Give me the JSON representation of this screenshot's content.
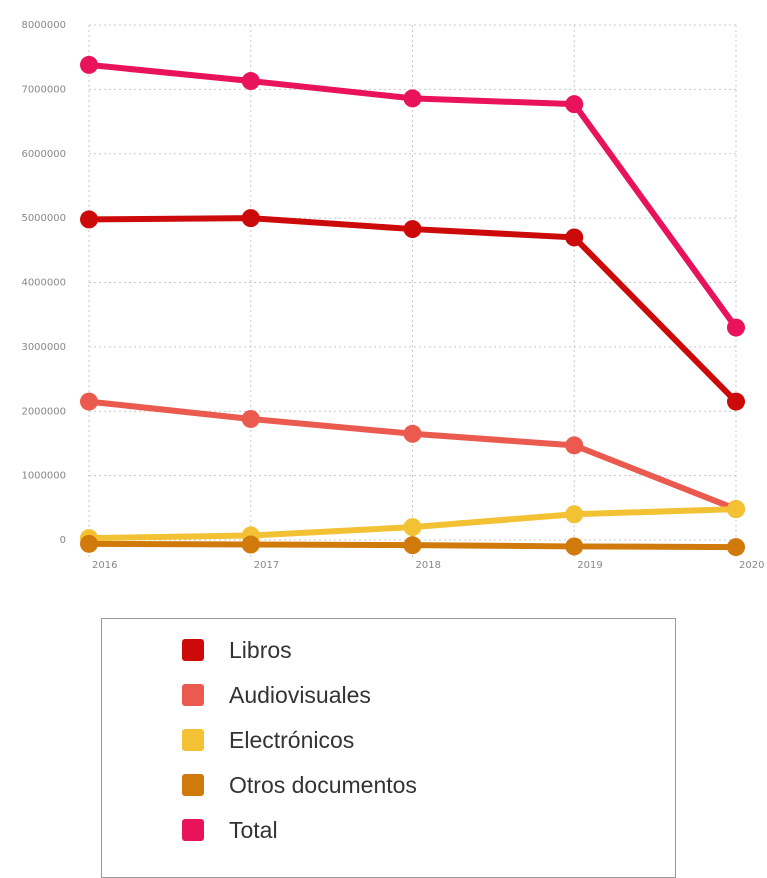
{
  "chart_data": {
    "type": "line",
    "x": [
      "2016",
      "2017",
      "2018",
      "2019",
      "2020"
    ],
    "ylim": [
      0,
      8000000
    ],
    "yticks": [
      0,
      1000000,
      2000000,
      3000000,
      4000000,
      5000000,
      6000000,
      7000000,
      8000000
    ],
    "ytick_labels": [
      "0",
      "1000000",
      "2000000",
      "3000000",
      "4000000",
      "5000000",
      "6000000",
      "7000000",
      "8000000"
    ],
    "grid": true,
    "legend_position": "bottom",
    "series": [
      {
        "name": "Libros",
        "color": "#cc0a0a",
        "values": [
          4980000,
          5000000,
          4830000,
          4700000,
          2150000
        ]
      },
      {
        "name": "Audiovisuales",
        "color": "#ea5a4e",
        "values": [
          2150000,
          1880000,
          1650000,
          1470000,
          480000
        ]
      },
      {
        "name": "Electrónicos",
        "color": "#f2c234",
        "values": [
          30000,
          70000,
          200000,
          400000,
          480000
        ]
      },
      {
        "name": "Otros documentos",
        "color": "#d07a0c",
        "values": [
          -60000,
          -70000,
          -80000,
          -100000,
          -110000
        ]
      },
      {
        "name": "Total",
        "color": "#e8135a",
        "values": [
          7380000,
          7130000,
          6860000,
          6770000,
          3300000
        ]
      }
    ]
  }
}
